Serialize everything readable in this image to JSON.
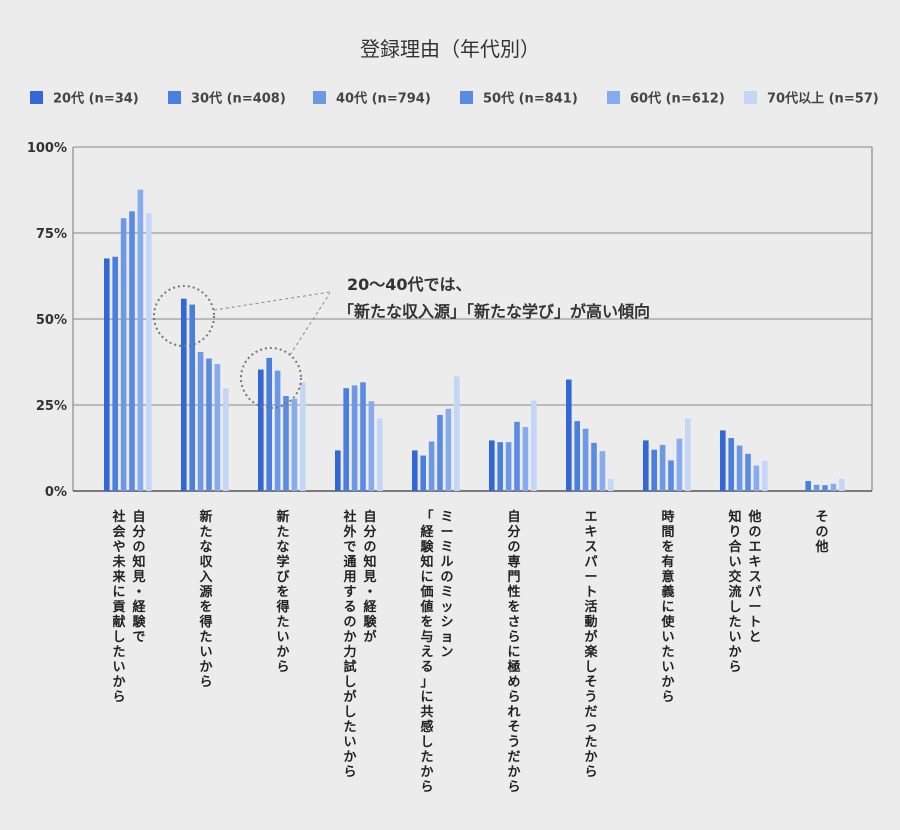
{
  "chart_data": {
    "type": "bar",
    "title": "登録理由（年代別）",
    "xlabel": "",
    "ylabel": "",
    "ylim": [
      0,
      100
    ],
    "yticks": [
      "0%",
      "25%",
      "50%",
      "75%",
      "100%"
    ],
    "yticks_values": [
      0,
      25,
      50,
      75,
      100
    ],
    "grid": true,
    "legend_position": "top",
    "categories": [
      [
        "自分の知見・経験で",
        "社会や未来に貢献したいから"
      ],
      [
        "新たな収入源を得たいから"
      ],
      [
        "新たな学びを得たいから"
      ],
      [
        "自分の知見・経験が",
        "社外で通用するのか力試しがしたいから"
      ],
      [
        "ミーミルのミッション",
        "「経験知に価値を与える」に共感したから"
      ],
      [
        "自分の専門性をさらに極められそうだから"
      ],
      [
        "エキスパート活動が楽しそうだったから"
      ],
      [
        "時間を有意義に使いたいから"
      ],
      [
        "他のエキスパートと",
        "知り合い交流したいから"
      ],
      [
        "その他"
      ]
    ],
    "series": [
      {
        "name": "20代 (n=34)",
        "color": "#3367d6",
        "values": [
          67.6,
          55.9,
          35.3,
          11.8,
          11.8,
          14.7,
          32.4,
          14.7,
          17.6,
          0.0
        ]
      },
      {
        "name": "30代 (n=408)",
        "color": "#4a7fdf",
        "values": [
          68.1,
          54.2,
          38.7,
          29.9,
          10.3,
          14.2,
          20.3,
          12.0,
          15.4,
          2.9
        ]
      },
      {
        "name": "40代 (n=794)",
        "color": "#6d98e6",
        "values": [
          79.3,
          40.4,
          35.0,
          30.7,
          14.4,
          14.2,
          18.1,
          13.4,
          13.2,
          1.8
        ]
      },
      {
        "name": "50代 (n=841)",
        "color": "#5a8ae2",
        "values": [
          81.3,
          38.5,
          27.6,
          31.6,
          22.1,
          20.1,
          14.0,
          8.9,
          10.8,
          1.7
        ]
      },
      {
        "name": "60代 (n=612)",
        "color": "#86aced",
        "values": [
          87.6,
          36.9,
          26.8,
          26.1,
          23.9,
          18.6,
          11.6,
          15.2,
          7.4,
          2.1
        ]
      },
      {
        "name": "70代以上 (n=57)",
        "color": "#c3d6f6",
        "values": [
          80.7,
          29.8,
          31.6,
          21.1,
          33.3,
          26.3,
          3.5,
          21.1,
          8.8,
          3.5
        ]
      }
    ],
    "annotations": [
      {
        "text": [
          "20〜40代では、",
          "「新たな収入源」「新たな学び」が高い傾向"
        ],
        "targets": [
          1,
          2
        ]
      }
    ]
  }
}
